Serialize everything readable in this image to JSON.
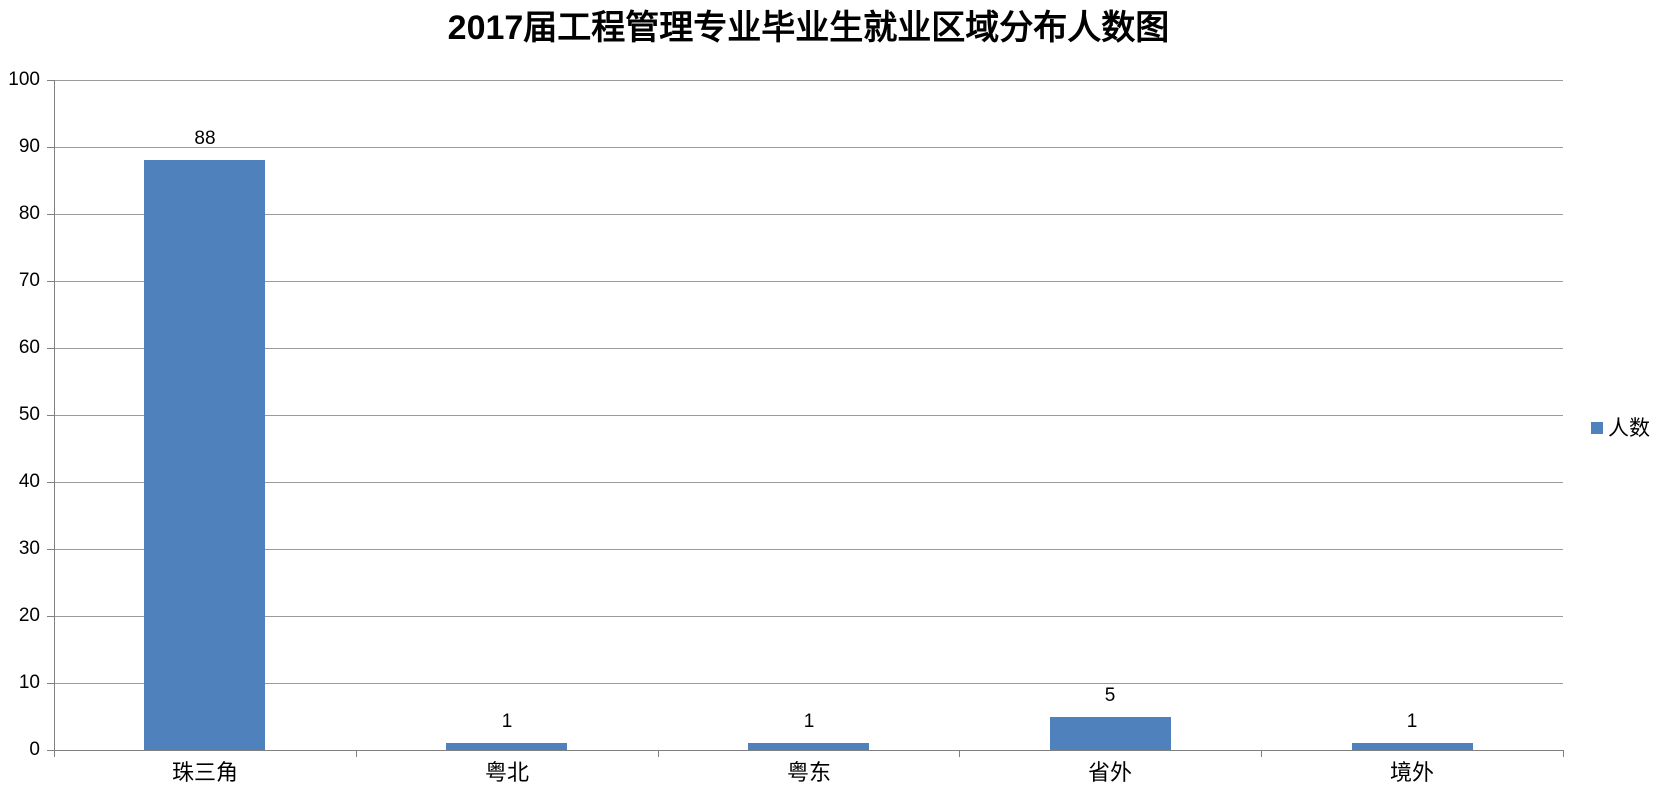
{
  "chart_data": {
    "type": "bar",
    "title": "2017届工程管理专业毕业生就业区域分布人数图",
    "categories": [
      "珠三角",
      "粤北",
      "粤东",
      "省外",
      "境外"
    ],
    "series": [
      {
        "name": "人数",
        "values": [
          88,
          1,
          1,
          5,
          1
        ]
      }
    ],
    "data_labels": [
      "88",
      "1",
      "1",
      "5",
      "1"
    ],
    "xlabel": "",
    "ylabel": "",
    "ylim": [
      0,
      100
    ],
    "ytick_interval": 10,
    "yticks": [
      0,
      10,
      20,
      30,
      40,
      50,
      60,
      70,
      80,
      90,
      100
    ],
    "grid": true,
    "show_data_labels": true,
    "legend": {
      "label": "人数",
      "position": "right",
      "marker": "square-icon"
    },
    "colors": {
      "bar": "#4f81bd",
      "gridline": "#9b9b9b",
      "axis": "#808080",
      "text": "#000000",
      "background": "#ffffff"
    }
  }
}
